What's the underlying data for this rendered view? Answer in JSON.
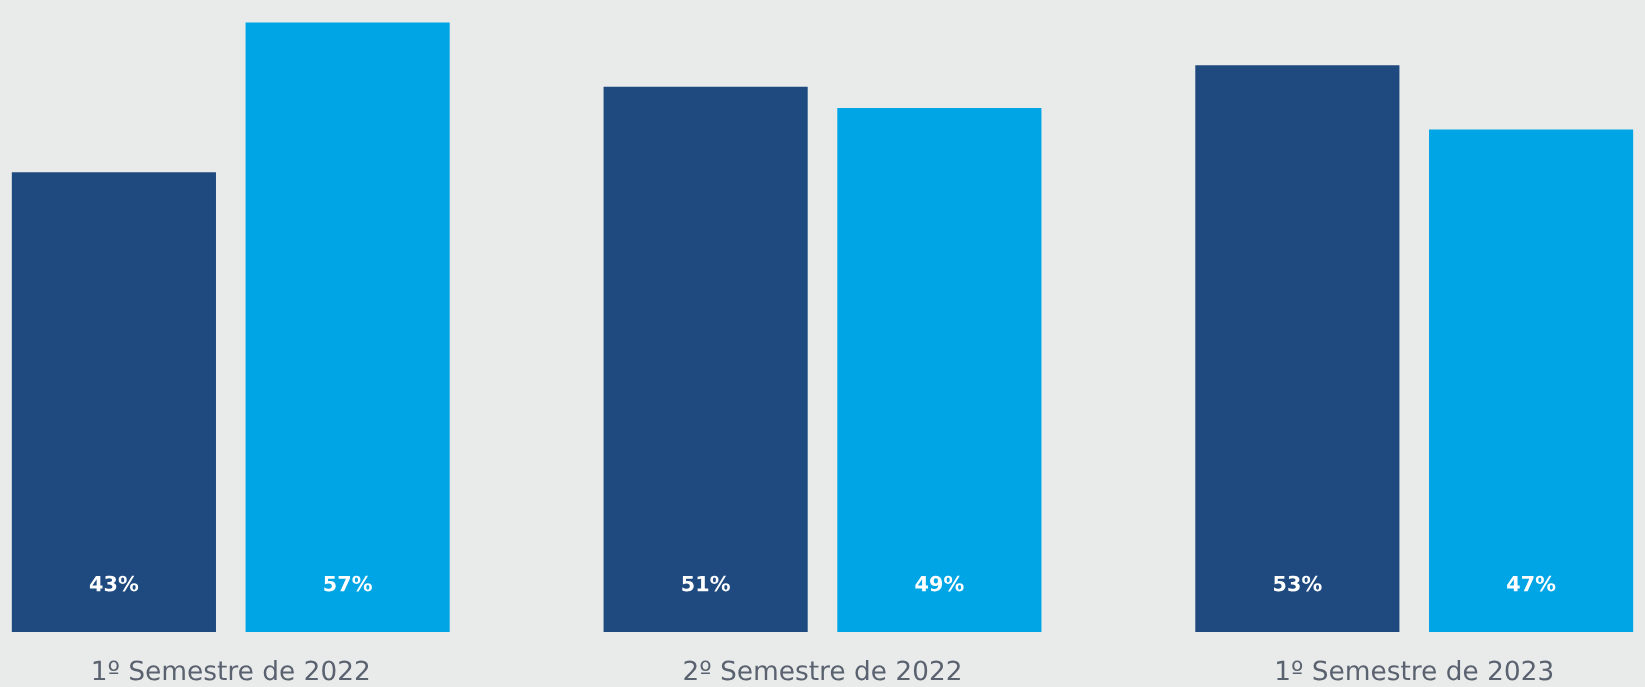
{
  "chart_data": {
    "type": "bar",
    "categories": [
      "1º Semestre de 2022",
      "2º Semestre de 2022",
      "1º Semestre de 2023"
    ],
    "series": [
      {
        "color": "#1f4a7f",
        "values": [
          43,
          51,
          53
        ],
        "value_labels": [
          "43%",
          "51%",
          "53%"
        ]
      },
      {
        "color": "#00a5e6",
        "values": [
          57,
          49,
          47
        ],
        "value_labels": [
          "57%",
          "49%",
          "47%"
        ]
      }
    ],
    "tick_labels": "x"
  }
}
